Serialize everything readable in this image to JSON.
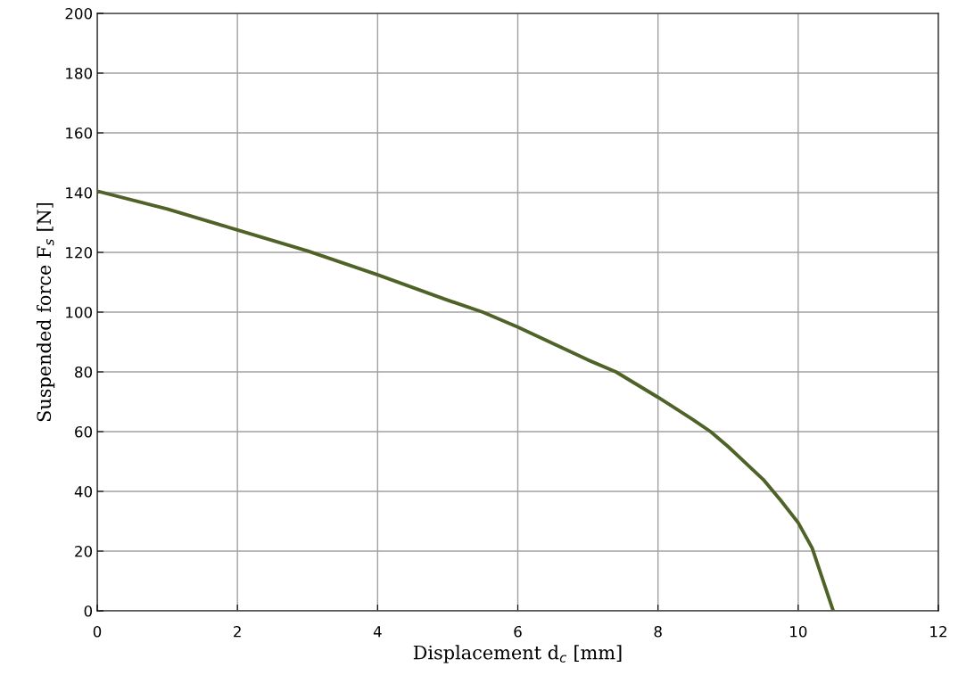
{
  "chart_data": {
    "type": "line",
    "xlabel": "Displacement d$_{c}$ [mm]",
    "ylabel": "Suspended force F$_{s}$ [N]",
    "x": [
      0,
      1,
      2,
      3,
      4,
      5,
      5.5,
      6,
      7,
      7.4,
      8,
      8.5,
      8.75,
      9,
      9.5,
      9.75,
      10,
      10.2,
      10.3,
      10.5
    ],
    "series": [
      {
        "color": "#4f6228",
        "values": [
          140.5,
          134.5,
          127.5,
          120.5,
          112.5,
          104,
          100,
          95,
          84,
          80,
          71.5,
          64,
          60,
          55,
          44,
          37,
          29.5,
          21,
          14,
          0
        ]
      }
    ],
    "xlim": [
      0,
      12
    ],
    "xticks": [
      0,
      2,
      4,
      6,
      8,
      10,
      12
    ],
    "ylim": [
      0,
      200
    ],
    "yticks": [
      0,
      20,
      40,
      60,
      80,
      100,
      120,
      140,
      160,
      180,
      200
    ],
    "grid": true,
    "legend": false,
    "marker": "none",
    "line_style": "solid"
  }
}
